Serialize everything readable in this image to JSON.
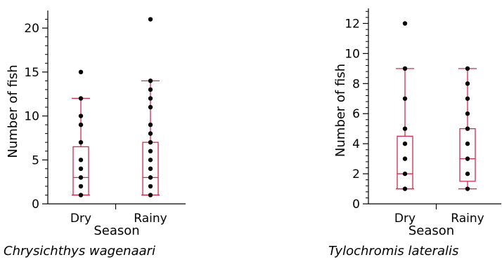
{
  "chart_data": [
    {
      "type": "box",
      "caption": "Chrysichthys wagenaari",
      "xlabel": "Season",
      "ylabel": "Number of fish",
      "ylim": [
        0,
        22
      ],
      "yticks": [
        0,
        5,
        10,
        15,
        20
      ],
      "minor_ticks": true,
      "grid": false,
      "box_color": "#d62a4f",
      "point_color": "#000000",
      "categories": [
        "Dry",
        "Rainy"
      ],
      "boxes": [
        {
          "category": "Dry",
          "min": 1,
          "q1": 1,
          "median": 3,
          "q3": 6.5,
          "max": 12,
          "points": [
            1,
            2,
            3,
            4,
            5,
            7,
            9,
            10,
            12,
            15
          ]
        },
        {
          "category": "Rainy",
          "min": 1,
          "q1": 1,
          "median": 3,
          "q3": 7,
          "max": 14,
          "points": [
            1,
            2,
            3,
            4,
            5,
            6,
            7,
            8,
            9,
            11,
            12,
            13,
            14,
            21
          ]
        }
      ]
    },
    {
      "type": "box",
      "caption": "Tylochromis lateralis",
      "xlabel": "Season",
      "ylabel": "Number of fish",
      "ylim": [
        0,
        13
      ],
      "yticks": [
        0,
        2,
        4,
        6,
        8,
        10,
        12
      ],
      "minor_ticks": true,
      "grid": false,
      "box_color": "#d62a4f",
      "point_color": "#000000",
      "categories": [
        "Dry",
        "Rainy"
      ],
      "boxes": [
        {
          "category": "Dry",
          "min": 1,
          "q1": 1,
          "median": 2,
          "q3": 4.5,
          "max": 9,
          "points": [
            1,
            2,
            3,
            4,
            5,
            7,
            9,
            12
          ]
        },
        {
          "category": "Rainy",
          "min": 1,
          "q1": 1.5,
          "median": 3,
          "q3": 5,
          "max": 9,
          "points": [
            1,
            2,
            3,
            4,
            5,
            6,
            7,
            8,
            9
          ]
        }
      ]
    }
  ]
}
